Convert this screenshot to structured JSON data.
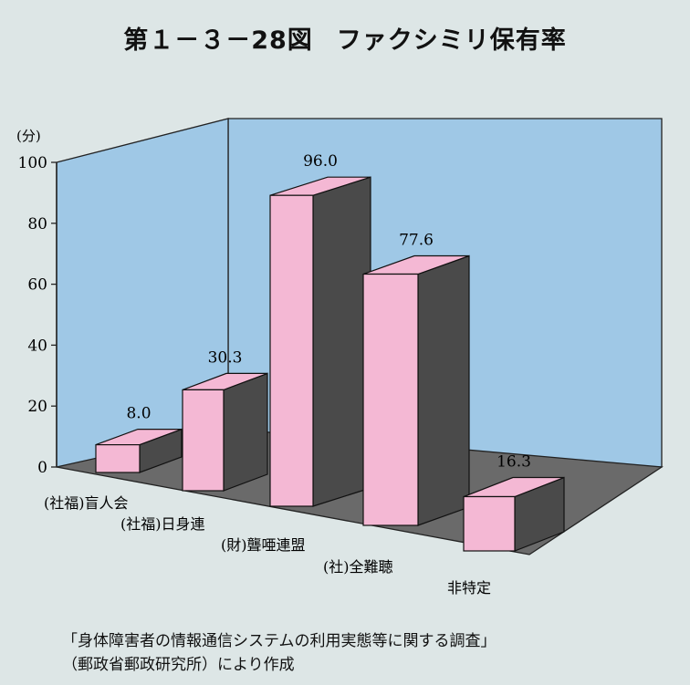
{
  "title": {
    "figure_number": "第１－３－28図",
    "text": "ファクシミリ保有率"
  },
  "chart_data": {
    "type": "bar",
    "ylabel": "(分)",
    "ylim": [
      0,
      100
    ],
    "yticks": [
      0,
      20,
      40,
      60,
      80,
      100
    ],
    "categories": [
      "(社福)盲人会",
      "(社福)日身連",
      "(財)聾唖連盟",
      "(社)全難聴",
      "非特定"
    ],
    "values": [
      8.0,
      30.3,
      96.0,
      77.6,
      16.3
    ],
    "value_labels": [
      "8.0",
      "30.3",
      "96.0",
      "77.6",
      "16.3"
    ],
    "bar_color": "#f4b8d4",
    "wall_color": "#9fc8e6",
    "floor_color": "#6a6a6a"
  },
  "source": {
    "line1": "「身体障害者の情報通信システムの利用実態等に関する調査」",
    "line2": "（郵政省郵政研究所）により作成"
  }
}
